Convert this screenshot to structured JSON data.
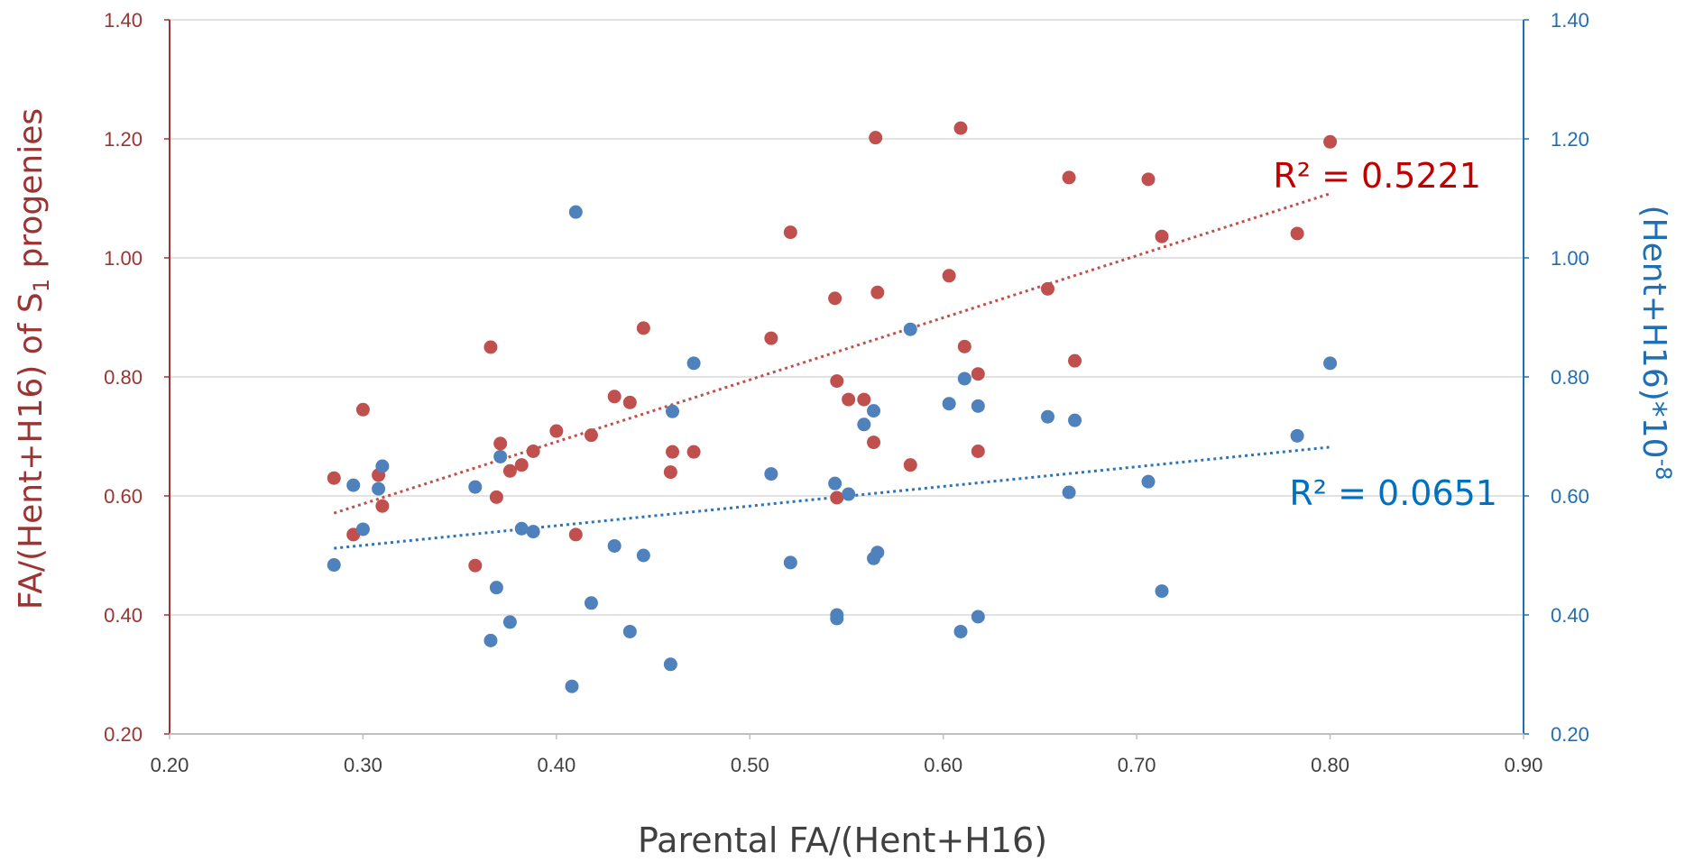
{
  "chart_data": {
    "type": "scatter",
    "xlabel": "Parental FA/(Hent+H16)",
    "ylabel_left": {
      "pre": "FA/(Hent+H16) of S",
      "sub": "1",
      "post": " progenies"
    },
    "ylabel_right": {
      "base": "(Hent+H16)*10",
      "sup": "-8"
    },
    "xlim": [
      0.2,
      0.9
    ],
    "ylim": [
      0.2,
      1.4
    ],
    "x_ticks": [
      "0.20",
      "0.30",
      "0.40",
      "0.50",
      "0.60",
      "0.70",
      "0.80",
      "0.90"
    ],
    "y_ticks": [
      "0.20",
      "0.40",
      "0.60",
      "0.80",
      "1.00",
      "1.20",
      "1.40"
    ],
    "grid": "horizontal",
    "series": [
      {
        "axis": "left",
        "color": "#c0504d",
        "trend_color": "#c0504d",
        "r2_label": "R² = 0.5221",
        "trend": [
          [
            0.285,
            0.571
          ],
          [
            0.8,
            1.108
          ]
        ],
        "points": [
          [
            0.285,
            0.63
          ],
          [
            0.295,
            0.535
          ],
          [
            0.3,
            0.745
          ],
          [
            0.308,
            0.635
          ],
          [
            0.31,
            0.583
          ],
          [
            0.358,
            0.483
          ],
          [
            0.366,
            0.85
          ],
          [
            0.369,
            0.598
          ],
          [
            0.371,
            0.688
          ],
          [
            0.376,
            0.642
          ],
          [
            0.382,
            0.652
          ],
          [
            0.388,
            0.675
          ],
          [
            0.4,
            0.709
          ],
          [
            0.41,
            0.535
          ],
          [
            0.418,
            0.702
          ],
          [
            0.43,
            0.767
          ],
          [
            0.438,
            0.757
          ],
          [
            0.445,
            0.882
          ],
          [
            0.459,
            0.64
          ],
          [
            0.46,
            0.674
          ],
          [
            0.471,
            0.674
          ],
          [
            0.511,
            0.865
          ],
          [
            0.521,
            1.043
          ],
          [
            0.544,
            0.932
          ],
          [
            0.545,
            0.793
          ],
          [
            0.545,
            0.597
          ],
          [
            0.551,
            0.762
          ],
          [
            0.559,
            0.762
          ],
          [
            0.564,
            0.69
          ],
          [
            0.565,
            1.202
          ],
          [
            0.566,
            0.942
          ],
          [
            0.583,
            0.652
          ],
          [
            0.603,
            0.97
          ],
          [
            0.609,
            1.218
          ],
          [
            0.611,
            0.851
          ],
          [
            0.618,
            0.805
          ],
          [
            0.618,
            0.675
          ],
          [
            0.654,
            0.948
          ],
          [
            0.665,
            1.135
          ],
          [
            0.668,
            0.827
          ],
          [
            0.706,
            1.132
          ],
          [
            0.713,
            1.036
          ],
          [
            0.783,
            1.041
          ],
          [
            0.8,
            1.195
          ]
        ]
      },
      {
        "axis": "right",
        "color": "#4f81bd",
        "trend_color": "#2e75b6",
        "r2_label": "R² = 0.0651",
        "trend": [
          [
            0.285,
            0.512
          ],
          [
            0.8,
            0.682
          ]
        ],
        "points": [
          [
            0.285,
            0.484
          ],
          [
            0.295,
            0.618
          ],
          [
            0.3,
            0.544
          ],
          [
            0.308,
            0.612
          ],
          [
            0.31,
            0.65
          ],
          [
            0.358,
            0.615
          ],
          [
            0.366,
            0.357
          ],
          [
            0.369,
            0.446
          ],
          [
            0.371,
            0.666
          ],
          [
            0.376,
            0.388
          ],
          [
            0.382,
            0.545
          ],
          [
            0.388,
            0.54
          ],
          [
            0.41,
            1.077
          ],
          [
            0.408,
            0.28
          ],
          [
            0.418,
            0.42
          ],
          [
            0.43,
            0.516
          ],
          [
            0.438,
            0.372
          ],
          [
            0.445,
            0.5
          ],
          [
            0.459,
            0.317
          ],
          [
            0.46,
            0.742
          ],
          [
            0.471,
            0.823
          ],
          [
            0.511,
            0.637
          ],
          [
            0.521,
            0.488
          ],
          [
            0.544,
            0.621
          ],
          [
            0.545,
            0.4
          ],
          [
            0.545,
            0.394
          ],
          [
            0.551,
            0.603
          ],
          [
            0.559,
            0.72
          ],
          [
            0.564,
            0.743
          ],
          [
            0.564,
            0.495
          ],
          [
            0.566,
            0.505
          ],
          [
            0.583,
            0.88
          ],
          [
            0.603,
            0.755
          ],
          [
            0.609,
            0.372
          ],
          [
            0.611,
            0.797
          ],
          [
            0.618,
            0.751
          ],
          [
            0.618,
            0.397
          ],
          [
            0.654,
            0.733
          ],
          [
            0.665,
            0.606
          ],
          [
            0.668,
            0.727
          ],
          [
            0.706,
            0.624
          ],
          [
            0.713,
            0.44
          ],
          [
            0.783,
            0.701
          ],
          [
            0.8,
            0.823
          ]
        ]
      }
    ]
  }
}
